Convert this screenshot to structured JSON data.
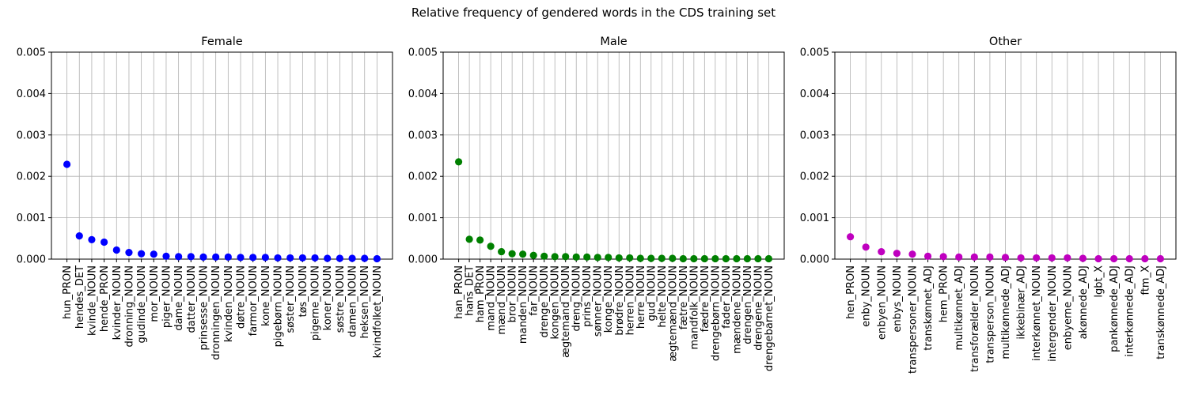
{
  "figure": {
    "title": "Relative frequency of gendered words in the CDS training set"
  },
  "chart_data": [
    {
      "type": "scatter",
      "title": "Female",
      "color": "#0000ff",
      "xlabel": "",
      "ylabel": "",
      "ylim": [
        0,
        0.005
      ],
      "yticks": [
        "0.000",
        "0.001",
        "0.002",
        "0.003",
        "0.004",
        "0.005"
      ],
      "grid": true,
      "categories": [
        "hun_PRON",
        "hendes_DET",
        "kvinde_NOUN",
        "hende_PRON",
        "kvinder_NOUN",
        "dronning_NOUN",
        "gudinde_NOUN",
        "mor_NOUN",
        "piger_NOUN",
        "dame_NOUN",
        "datter_NOUN",
        "prinsesse_NOUN",
        "dronningen_NOUN",
        "kvinden_NOUN",
        "døtre_NOUN",
        "farmor_NOUN",
        "kone_NOUN",
        "pigebørn_NOUN",
        "søster_NOUN",
        "tøs_NOUN",
        "pigerne_NOUN",
        "koner_NOUN",
        "søstre_NOUN",
        "damen_NOUN",
        "heksen_NOUN",
        "kvindfolket_NOUN"
      ],
      "values": [
        0.00229,
        0.00056,
        0.00047,
        0.00041,
        0.00022,
        0.00016,
        0.00013,
        0.00012,
        7e-05,
        6e-05,
        6e-05,
        5e-05,
        5e-05,
        5e-05,
        4e-05,
        4e-05,
        4e-05,
        3e-05,
        3e-05,
        3e-05,
        3e-05,
        2e-05,
        2e-05,
        2e-05,
        2e-05,
        1e-05
      ]
    },
    {
      "type": "scatter",
      "title": "Male",
      "color": "#008000",
      "xlabel": "",
      "ylabel": "",
      "ylim": [
        0,
        0.005
      ],
      "yticks": [
        "0.000",
        "0.001",
        "0.002",
        "0.003",
        "0.004",
        "0.005"
      ],
      "grid": true,
      "categories": [
        "han_PRON",
        "hans_DET",
        "ham_PRON",
        "mand_NOUN",
        "mænd_NOUN",
        "bror_NOUN",
        "manden_NOUN",
        "far_NOUN",
        "drenge_NOUN",
        "kongen_NOUN",
        "ægtemand_NOUN",
        "dreng_NOUN",
        "prins_NOUN",
        "sønner_NOUN",
        "konge_NOUN",
        "brødre_NOUN",
        "herren_NOUN",
        "herre_NOUN",
        "gud_NOUN",
        "helte_NOUN",
        "ægtemænd_NOUN",
        "fætre_NOUN",
        "mandfolk_NOUN",
        "fædre_NOUN",
        "drengebørn_NOUN",
        "fader_NOUN",
        "mændene_NOUN",
        "drengen_NOUN",
        "drengene_NOUN",
        "drengebarnet_NOUN"
      ],
      "values": [
        0.00235,
        0.00048,
        0.00046,
        0.00031,
        0.00018,
        0.00013,
        0.00012,
        9e-05,
        7e-05,
        6e-05,
        6e-05,
        5e-05,
        5e-05,
        4e-05,
        4e-05,
        3e-05,
        3e-05,
        2e-05,
        2e-05,
        2e-05,
        2e-05,
        1e-05,
        1e-05,
        1e-05,
        1e-05,
        1e-05,
        1e-05,
        1e-05,
        1e-05,
        1e-05
      ]
    },
    {
      "type": "scatter",
      "title": "Other",
      "color": "#bf00bf",
      "xlabel": "",
      "ylabel": "",
      "ylim": [
        0,
        0.005
      ],
      "yticks": [
        "0.000",
        "0.001",
        "0.002",
        "0.003",
        "0.004",
        "0.005"
      ],
      "grid": true,
      "categories": [
        "hen_PRON",
        "enby_NOUN",
        "enbyen_NOUN",
        "enbys_NOUN",
        "transpersoner_NOUN",
        "transkønnet_ADJ",
        "hem_PRON",
        "multikønnet_ADJ",
        "transforælder_NOUN",
        "transperson_NOUN",
        "multikønnede_ADJ",
        "ikkebinær_ADJ",
        "interkønnet_NOUN",
        "intergender_NOUN",
        "enbyerne_NOUN",
        "akønnede_ADJ",
        "lgbt_X",
        "pankønnede_ADJ",
        "interkønnede_ADJ",
        "ftm_X",
        "transkønnede_ADJ"
      ],
      "values": [
        0.00054,
        0.00029,
        0.00018,
        0.00014,
        0.00012,
        7e-05,
        6e-05,
        5e-05,
        5e-05,
        5e-05,
        4e-05,
        3e-05,
        3e-05,
        3e-05,
        3e-05,
        2e-05,
        1e-05,
        1e-05,
        1e-05,
        1e-05,
        1e-05
      ]
    }
  ]
}
